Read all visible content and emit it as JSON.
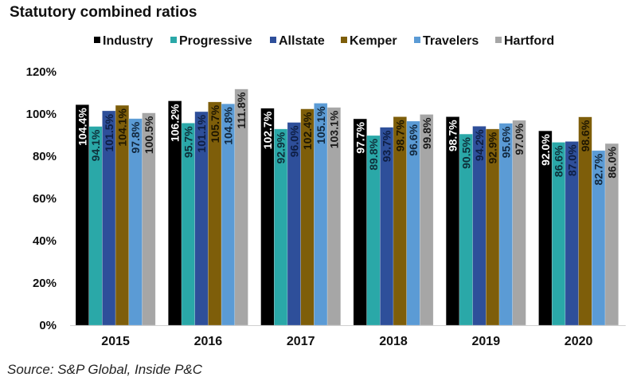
{
  "chart_data": {
    "type": "bar",
    "title": "Statutory combined ratios",
    "xlabel": "",
    "ylabel": "",
    "ylim": [
      0,
      120
    ],
    "yticks": [
      "0%",
      "20%",
      "40%",
      "60%",
      "80%",
      "100%",
      "120%"
    ],
    "ytick_values": [
      0,
      20,
      40,
      60,
      80,
      100,
      120
    ],
    "grid": false,
    "legend_position": "top",
    "categories": [
      "2015",
      "2016",
      "2017",
      "2018",
      "2019",
      "2020"
    ],
    "series": [
      {
        "name": "Industry",
        "color": "#000000",
        "label_color": "#ffffff",
        "values": [
          104.4,
          106.2,
          102.7,
          97.7,
          98.7,
          92.0
        ],
        "labels": [
          "104.4%",
          "106.2%",
          "102.7%",
          "97.7%",
          "98.7%",
          "92.0%"
        ]
      },
      {
        "name": "Progressive",
        "color": "#2aa8a8",
        "label_color": "#0e2f3a",
        "values": [
          94.1,
          95.7,
          92.9,
          89.8,
          90.5,
          86.6
        ],
        "labels": [
          "94.1%",
          "95.7%",
          "92.9%",
          "89.8%",
          "90.5%",
          "86.6%"
        ]
      },
      {
        "name": "Allstate",
        "color": "#2e4f9a",
        "label_color": "#0e1e44",
        "values": [
          101.5,
          101.1,
          96.0,
          93.7,
          94.2,
          87.0
        ],
        "labels": [
          "101.5%",
          "101.1%",
          "96.0%",
          "93.7%",
          "94.2%",
          "87.0%"
        ]
      },
      {
        "name": "Kemper",
        "color": "#7e5e0a",
        "label_color": "#1e1602",
        "values": [
          104.1,
          105.7,
          102.4,
          98.7,
          92.9,
          98.6
        ],
        "labels": [
          "104.1%",
          "105.7%",
          "102.4%",
          "98.7%",
          "92.9%",
          "98.6%"
        ]
      },
      {
        "name": "Travelers",
        "color": "#5b9bd5",
        "label_color": "#12283e",
        "values": [
          97.8,
          104.8,
          105.1,
          96.6,
          95.6,
          82.7
        ],
        "labels": [
          "97.8%",
          "104.8%",
          "105.1%",
          "96.6%",
          "95.6%",
          "82.7%"
        ]
      },
      {
        "name": "Hartford",
        "color": "#a6a6a6",
        "label_color": "#1a1a1a",
        "values": [
          100.5,
          111.8,
          103.1,
          99.8,
          97.0,
          86.0
        ],
        "labels": [
          "100.5%",
          "111.8%",
          "103.1%",
          "99.8%",
          "97.0%",
          "86.0%"
        ]
      }
    ]
  },
  "source": "Source: S&P Global, Inside P&C"
}
